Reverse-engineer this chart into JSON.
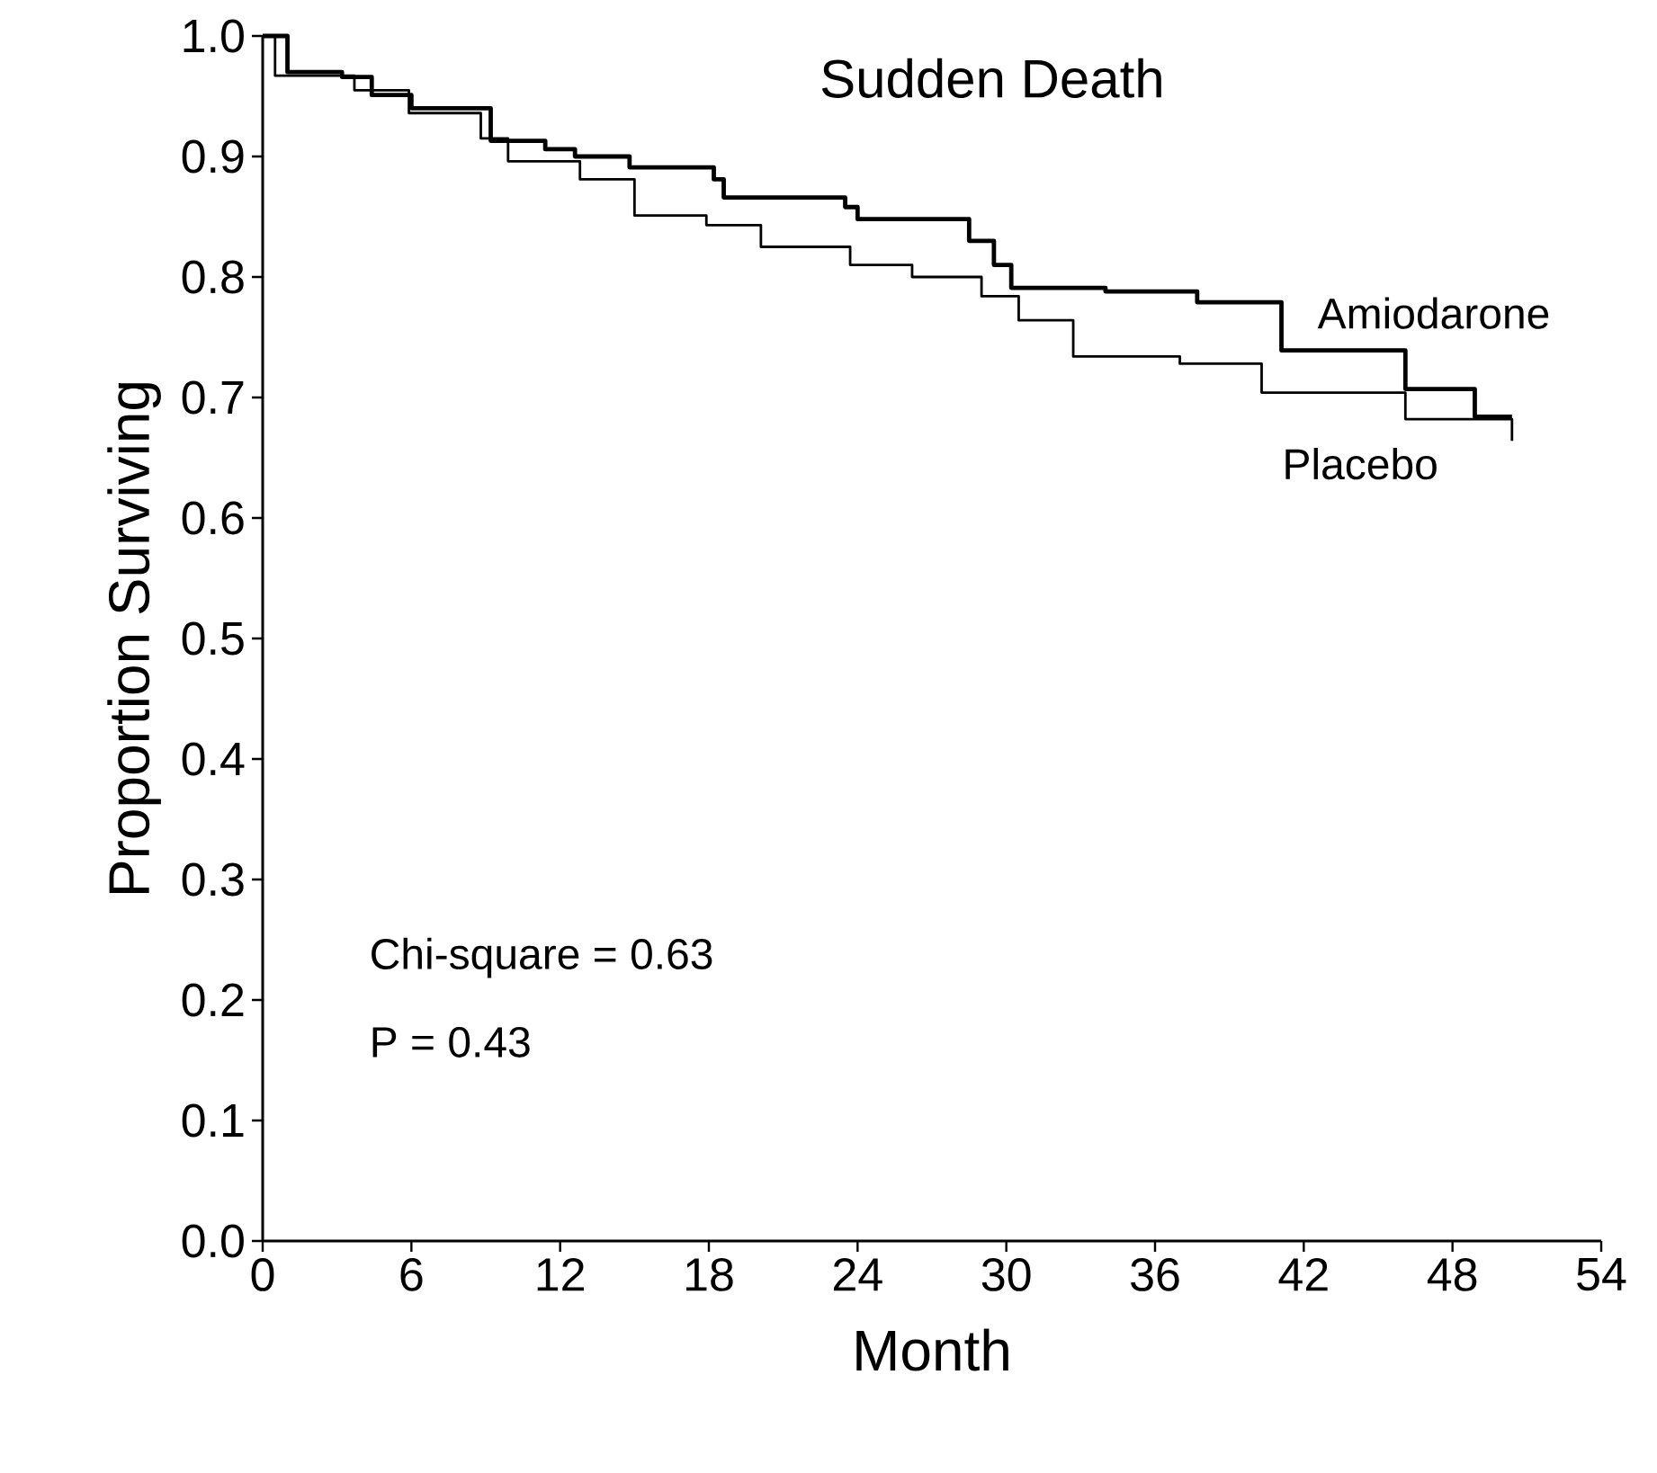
{
  "chart_data": {
    "type": "step",
    "title": "Sudden Death",
    "xlabel": "Month",
    "ylabel": "Proportion Surviving",
    "xlim": [
      0,
      54
    ],
    "ylim": [
      0,
      1
    ],
    "xticks": [
      0,
      6,
      12,
      18,
      24,
      30,
      36,
      42,
      48,
      54
    ],
    "yticks": [
      {
        "value": 0,
        "label": "0.0"
      },
      0.1,
      0.2,
      0.3,
      0.4,
      0.5,
      0.6,
      0.7,
      0.8,
      0.9,
      {
        "value": 1,
        "label": "1.0"
      }
    ],
    "grid": false,
    "legend": false,
    "marker": "none",
    "line_style": "solid",
    "annotations": [
      "Chi-square = 0.63",
      "P = 0.43"
    ],
    "series": [
      {
        "name": "Amiodarone",
        "color": "#000000",
        "x": [
          0,
          1,
          3.2,
          4.4,
          6,
          9.2,
          11.4,
          12.6,
          14.8,
          18.2,
          18.6,
          23.5,
          24,
          27.5,
          28.5,
          29.5,
          30.2,
          34,
          37.7,
          41.1,
          46.1,
          48.9,
          50.4
        ],
        "values": [
          1.0,
          0.97,
          0.966,
          0.951,
          0.94,
          0.913,
          0.906,
          0.9,
          0.891,
          0.881,
          0.866,
          0.858,
          0.848,
          0.848,
          0.83,
          0.81,
          0.791,
          0.788,
          0.779,
          0.739,
          0.707,
          0.684,
          0.684
        ]
      },
      {
        "name": "Placebo",
        "color": "#000000",
        "x": [
          0,
          0.5,
          3.7,
          5.9,
          8.8,
          9.9,
          12.8,
          15,
          17.9,
          20.1,
          23.7,
          26.2,
          29,
          30.5,
          32.7,
          37,
          40.3,
          46.1,
          50.4
        ],
        "values": [
          1.0,
          0.967,
          0.955,
          0.936,
          0.915,
          0.896,
          0.881,
          0.851,
          0.843,
          0.825,
          0.81,
          0.8,
          0.784,
          0.764,
          0.734,
          0.728,
          0.704,
          0.682,
          0.664
        ]
      }
    ]
  }
}
